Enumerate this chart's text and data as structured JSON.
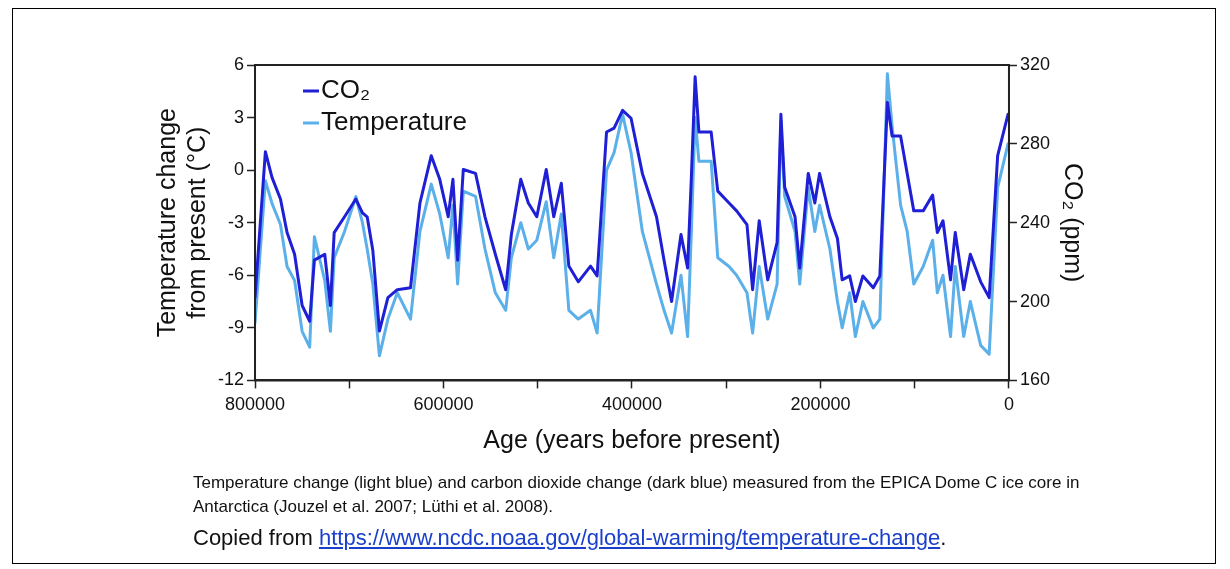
{
  "chart_data": {
    "type": "line",
    "xlabel": "Age (years before present)",
    "ylabel": "Temperature change from present (°C)",
    "y2label": "CO₂ (ppm)",
    "x": [
      800000,
      789000,
      782000,
      773000,
      766000,
      758000,
      750000,
      742000,
      737000,
      726000,
      720000,
      716000,
      705000,
      693000,
      686000,
      681000,
      675000,
      668000,
      659000,
      649000,
      635000,
      625000,
      613000,
      604000,
      595000,
      590000,
      585000,
      579000,
      566000,
      556000,
      545000,
      534000,
      528000,
      518000,
      510000,
      501000,
      491000,
      483000,
      475000,
      467000,
      457000,
      444000,
      437000,
      427000,
      419000,
      410000,
      401000,
      389000,
      374000,
      366000,
      358000,
      348000,
      341000,
      337000,
      333000,
      329000,
      316000,
      309000,
      297000,
      289000,
      278000,
      272000,
      265000,
      256000,
      246000,
      242000,
      238000,
      227000,
      222000,
      213000,
      206000,
      201000,
      190000,
      182000,
      177000,
      169000,
      163000,
      155000,
      144000,
      137000,
      129000,
      124000,
      115000,
      108000,
      101000,
      91000,
      81000,
      76000,
      70000,
      62000,
      57000,
      48000,
      41000,
      30000,
      21000,
      12000,
      1000
    ],
    "series": [
      {
        "name": "CO₂",
        "color": "#1f1fd6",
        "axis": "y2",
        "values": [
          202,
          276,
          263,
          252,
          235,
          224,
          198,
          190,
          221,
          224,
          198,
          235,
          243,
          252,
          245,
          243,
          226,
          185,
          202,
          206,
          207,
          250,
          274,
          262,
          243,
          262,
          221,
          267,
          265,
          243,
          224,
          206,
          234,
          262,
          250,
          243,
          267,
          243,
          260,
          218,
          210,
          218,
          213,
          286,
          288,
          297,
          293,
          265,
          243,
          221,
          200,
          234,
          217,
          263,
          314,
          286,
          286,
          256,
          250,
          246,
          239,
          206,
          241,
          211,
          230,
          295,
          258,
          243,
          217,
          265,
          250,
          265,
          243,
          232,
          211,
          213,
          200,
          213,
          207,
          213,
          301,
          284,
          284,
          265,
          246,
          246,
          254,
          235,
          241,
          211,
          235,
          206,
          224,
          210,
          202,
          274,
          295
        ]
      },
      {
        "name": "Temperature",
        "color": "#5cb0ea",
        "values": [
          -8.7,
          -0.6,
          -1.9,
          -3.1,
          -5.5,
          -6.3,
          -9.2,
          -10.1,
          -3.8,
          -6.3,
          -9.2,
          -5.0,
          -3.5,
          -1.5,
          -3.0,
          -4.5,
          -6.5,
          -10.6,
          -8.5,
          -7.0,
          -8.5,
          -3.5,
          -0.8,
          -2.5,
          -5.0,
          -2.0,
          -6.5,
          -1.2,
          -1.5,
          -4.5,
          -7.0,
          -8.0,
          -5.0,
          -3.0,
          -4.5,
          -4.0,
          -1.8,
          -5.0,
          -2.5,
          -8.0,
          -8.5,
          -8.0,
          -9.3,
          0.0,
          1.0,
          3.2,
          1.0,
          -3.5,
          -6.5,
          -8.0,
          -9.3,
          -6.0,
          -9.5,
          -3.5,
          3.0,
          0.5,
          0.5,
          -5.0,
          -5.5,
          -6.0,
          -7.0,
          -9.3,
          -5.5,
          -8.5,
          -6.5,
          2.8,
          -1.5,
          -3.5,
          -6.5,
          -1.0,
          -3.5,
          -2.0,
          -4.5,
          -7.5,
          -9.0,
          -7.0,
          -9.5,
          -7.5,
          -9.0,
          -8.5,
          5.5,
          2.5,
          -2.0,
          -3.5,
          -6.5,
          -5.5,
          -4.0,
          -7.0,
          -6.0,
          -9.5,
          -5.5,
          -9.5,
          -7.5,
          -10.0,
          -10.5,
          -1.0,
          1.5
        ]
      }
    ],
    "xlim": [
      800000,
      0
    ],
    "xticks": [
      800000,
      {
        "value": 700000,
        "label": null
      },
      600000,
      {
        "value": 500000,
        "label": null
      },
      400000,
      {
        "value": 300000,
        "label": null
      },
      200000,
      {
        "value": 100000,
        "label": null
      },
      0
    ],
    "ylim": [
      -12,
      6
    ],
    "yticks": [
      -12,
      -9,
      -6,
      -3,
      0,
      3,
      6
    ],
    "y2lim": [
      160,
      320
    ],
    "y2ticks": [
      160,
      200,
      240,
      280,
      320
    ],
    "grid": false,
    "legend": "top left",
    "marker": "none",
    "line_style": "solid",
    "annotations": [
      "Temperature change (light blue) and carbon dioxide change (dark blue) measured from the EPICA Dome C ice core in Antarctica (Jouzel et al. 2007; Lüthi et al. 2008).",
      "Copied from https://www.ncdc.noaa.gov/global-warming/temperature-change."
    ]
  }
}
